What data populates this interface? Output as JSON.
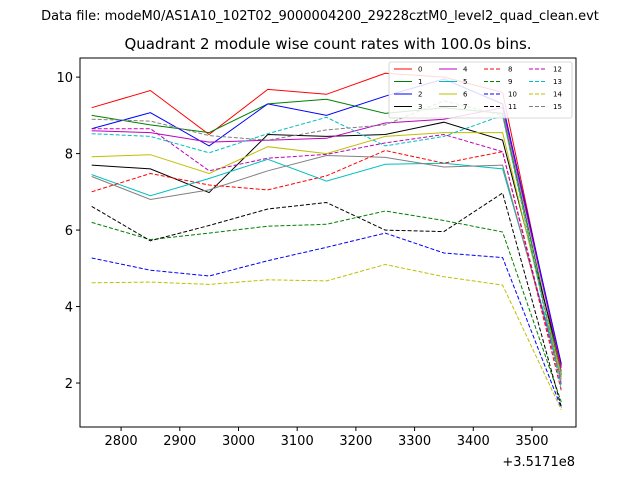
{
  "chart_data": {
    "type": "line",
    "suptitle": "Data file: modeM0/AS1A10_102T02_9000004200_29228cztM0_level2_quad_clean.evt",
    "title": "Quadrant 2 module wise count rates with 100.0s bins.",
    "x_offset_label": "+3.5171e8",
    "xlim": [
      2730,
      3575
    ],
    "ylim": [
      0.85,
      10.5
    ],
    "xticks": [
      2800,
      2900,
      3000,
      3100,
      3200,
      3300,
      3400,
      3500
    ],
    "xtick_labels": [
      "2800",
      "2900",
      "3000",
      "3100",
      "3200",
      "3300",
      "3400",
      "3500"
    ],
    "yticks": [
      2,
      4,
      6,
      8,
      10
    ],
    "ytick_labels": [
      "2",
      "4",
      "6",
      "8",
      "10"
    ],
    "x": [
      2750,
      2850,
      2950,
      3050,
      3150,
      3250,
      3350,
      3450,
      3550
    ],
    "legend_position": "top-right",
    "series": [
      {
        "name": "0",
        "color": "#ff0000",
        "dash": false,
        "values": [
          9.2,
          9.65,
          8.5,
          9.68,
          9.55,
          10.1,
          10.0,
          9.6,
          2.3
        ]
      },
      {
        "name": "1",
        "color": "#008000",
        "dash": false,
        "values": [
          9.0,
          8.75,
          8.55,
          9.3,
          9.42,
          9.05,
          9.2,
          9.05,
          2.2
        ]
      },
      {
        "name": "2",
        "color": "#0000ff",
        "dash": false,
        "values": [
          8.65,
          9.07,
          8.2,
          9.3,
          9.0,
          9.5,
          9.95,
          9.3,
          2.5
        ]
      },
      {
        "name": "3",
        "color": "#000000",
        "dash": false,
        "values": [
          7.7,
          7.6,
          6.98,
          8.5,
          8.45,
          8.5,
          8.82,
          8.35,
          2.45
        ]
      },
      {
        "name": "4",
        "color": "#bf00bf",
        "dash": false,
        "values": [
          8.6,
          8.55,
          8.3,
          8.35,
          8.4,
          8.8,
          8.9,
          9.2,
          2.4
        ]
      },
      {
        "name": "5",
        "color": "#00bfbf",
        "dash": false,
        "values": [
          7.45,
          6.9,
          7.35,
          7.85,
          7.28,
          7.72,
          7.75,
          7.6,
          2.25
        ]
      },
      {
        "name": "6",
        "color": "#bfbf00",
        "dash": false,
        "values": [
          7.92,
          7.97,
          7.48,
          8.18,
          8.0,
          8.45,
          8.55,
          8.55,
          2.15
        ]
      },
      {
        "name": "7",
        "color": "#808080",
        "dash": false,
        "values": [
          7.4,
          6.8,
          7.05,
          7.55,
          7.95,
          7.9,
          7.65,
          7.7,
          2.1
        ]
      },
      {
        "name": "8",
        "color": "#ff0000",
        "dash": true,
        "values": [
          7.0,
          7.48,
          7.18,
          7.05,
          7.42,
          8.08,
          7.75,
          8.05,
          1.8
        ]
      },
      {
        "name": "9",
        "color": "#008000",
        "dash": true,
        "values": [
          6.2,
          5.75,
          5.92,
          6.1,
          6.15,
          6.5,
          6.25,
          5.95,
          1.5
        ]
      },
      {
        "name": "10",
        "color": "#0000ff",
        "dash": true,
        "values": [
          5.27,
          4.95,
          4.8,
          5.2,
          5.55,
          5.92,
          5.4,
          5.28,
          1.35
        ]
      },
      {
        "name": "11",
        "color": "#000000",
        "dash": true,
        "values": [
          6.62,
          5.72,
          6.12,
          6.55,
          6.72,
          6.0,
          5.96,
          6.97,
          1.38
        ]
      },
      {
        "name": "12",
        "color": "#bf00bf",
        "dash": true,
        "values": [
          8.65,
          8.65,
          7.55,
          7.88,
          7.98,
          8.28,
          8.5,
          8.05,
          1.95
        ]
      },
      {
        "name": "13",
        "color": "#00bfbf",
        "dash": true,
        "values": [
          8.52,
          8.45,
          8.02,
          8.52,
          8.95,
          8.2,
          8.45,
          9.0,
          1.85
        ]
      },
      {
        "name": "14",
        "color": "#bfbf00",
        "dash": true,
        "values": [
          4.62,
          4.64,
          4.58,
          4.7,
          4.67,
          5.1,
          4.78,
          4.56,
          1.3
        ]
      },
      {
        "name": "15",
        "color": "#808080",
        "dash": true,
        "values": [
          8.9,
          8.85,
          8.47,
          8.35,
          8.62,
          8.75,
          9.38,
          9.0,
          2.0
        ]
      }
    ]
  }
}
